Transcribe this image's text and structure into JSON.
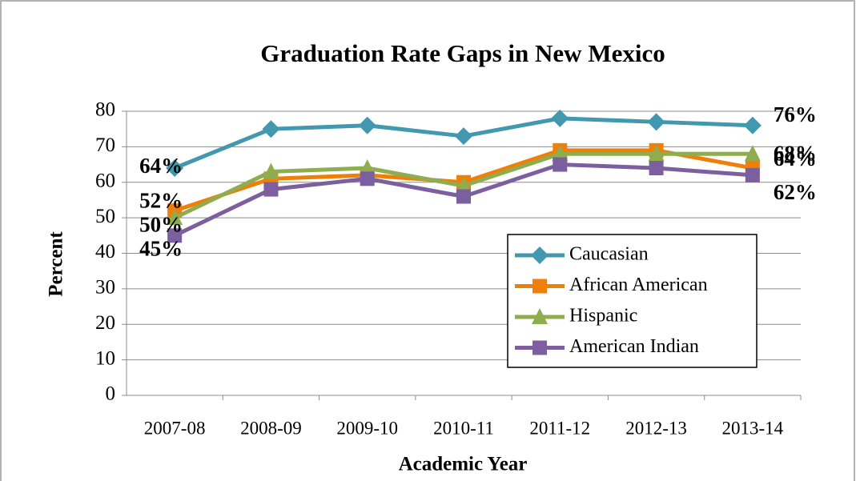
{
  "chart_data": {
    "type": "line",
    "title": "Graduation Rate Gaps in New Mexico",
    "x_label": "Academic Year",
    "y_label": "Percent",
    "categories": [
      "2007-08",
      "2008-09",
      "2009-10",
      "2010-11",
      "2011-12",
      "2012-13",
      "2013-14"
    ],
    "series": [
      {
        "name": "Caucasian",
        "color": "#4198af",
        "marker": "diamond",
        "values": [
          64,
          75,
          76,
          73,
          78,
          77,
          76
        ],
        "value_labels": [
          "64%",
          null,
          null,
          null,
          null,
          null,
          "76%"
        ]
      },
      {
        "name": "African American",
        "color": "#f07f09",
        "marker": "square",
        "values": [
          52,
          61,
          62,
          60,
          69,
          69,
          64
        ],
        "value_labels": [
          "52%",
          null,
          null,
          null,
          null,
          null,
          "64%"
        ]
      },
      {
        "name": "Hispanic",
        "color": "#8fad4f",
        "marker": "triangle",
        "values": [
          50,
          63,
          64,
          59,
          68,
          68,
          68
        ],
        "value_labels": [
          "50%",
          null,
          null,
          null,
          null,
          null,
          "68%"
        ]
      },
      {
        "name": "American Indian",
        "color": "#7b5f9e",
        "marker": "square",
        "values": [
          45,
          58,
          61,
          56,
          65,
          64,
          62
        ],
        "value_labels": [
          "45%",
          null,
          null,
          null,
          null,
          null,
          "62%"
        ]
      }
    ],
    "ylim": [
      0,
      80
    ],
    "yticks": [
      0,
      10,
      20,
      30,
      40,
      50,
      60,
      70,
      80
    ],
    "grid": true
  }
}
